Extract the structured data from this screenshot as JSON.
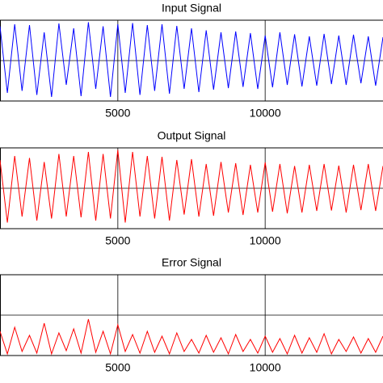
{
  "chart_data": [
    {
      "type": "line",
      "title": "Input Signal",
      "color": "#0000ff",
      "grid": true,
      "xlim": [
        1000,
        14000
      ],
      "xticks": [
        5000,
        10000
      ],
      "ylim": [
        -1,
        1
      ],
      "yticks": [
        0
      ],
      "x": [
        1000,
        1250,
        1500,
        1750,
        2000,
        2250,
        2500,
        2750,
        3000,
        3250,
        3500,
        3750,
        4000,
        4250,
        4500,
        4750,
        5000,
        5250,
        5500,
        5750,
        6000,
        6250,
        6500,
        6750,
        7000,
        7250,
        7500,
        7750,
        8000,
        8250,
        8500,
        8750,
        9000,
        9250,
        9500,
        9750,
        10000,
        10250,
        10500,
        10750,
        11000,
        11250,
        11500,
        11750,
        12000,
        12250,
        12500,
        12750,
        13000,
        13250,
        13500,
        13750,
        14000
      ],
      "values": [
        0.85,
        -0.8,
        0.9,
        -0.75,
        0.88,
        -0.85,
        0.7,
        -0.9,
        0.92,
        -0.6,
        0.8,
        -0.88,
        0.95,
        -0.7,
        0.85,
        -0.9,
        0.9,
        -0.8,
        0.93,
        -0.85,
        0.88,
        -0.75,
        0.9,
        -0.82,
        0.86,
        -0.7,
        0.8,
        -0.78,
        0.75,
        -0.72,
        0.7,
        -0.68,
        0.72,
        -0.65,
        0.68,
        -0.7,
        0.62,
        -0.66,
        0.7,
        -0.6,
        0.65,
        -0.64,
        0.6,
        -0.62,
        0.66,
        -0.58,
        0.62,
        -0.6,
        0.64,
        -0.56,
        0.6,
        -0.62,
        0.58
      ]
    },
    {
      "type": "line",
      "title": "Output Signal",
      "color": "#ff0000",
      "grid": true,
      "xlim": [
        1000,
        14000
      ],
      "xticks": [
        5000,
        10000
      ],
      "ylim": [
        -1,
        1
      ],
      "yticks": [
        0
      ],
      "x": [
        1000,
        1250,
        1500,
        1750,
        2000,
        2250,
        2500,
        2750,
        3000,
        3250,
        3500,
        3750,
        4000,
        4250,
        4500,
        4750,
        5000,
        5250,
        5500,
        5750,
        6000,
        6250,
        6500,
        6750,
        7000,
        7250,
        7500,
        7750,
        8000,
        8250,
        8500,
        8750,
        9000,
        9250,
        9500,
        9750,
        10000,
        10250,
        10500,
        10750,
        11000,
        11250,
        11500,
        11750,
        12000,
        12250,
        12500,
        12750,
        13000,
        13250,
        13500,
        13750,
        14000
      ],
      "values": [
        0.7,
        -0.85,
        0.8,
        -0.7,
        0.75,
        -0.8,
        0.65,
        -0.75,
        0.85,
        -0.7,
        0.8,
        -0.72,
        0.9,
        -0.8,
        0.85,
        -0.75,
        0.95,
        -0.85,
        0.9,
        -0.7,
        0.8,
        -0.75,
        0.78,
        -0.8,
        0.7,
        -0.65,
        0.72,
        -0.7,
        0.6,
        -0.68,
        0.65,
        -0.6,
        0.62,
        -0.66,
        0.58,
        -0.6,
        0.64,
        -0.58,
        0.6,
        -0.62,
        0.55,
        -0.6,
        0.58,
        -0.56,
        0.6,
        -0.55,
        0.56,
        -0.6,
        0.58,
        -0.54,
        0.6,
        -0.56,
        0.55
      ]
    },
    {
      "type": "line",
      "title": "Error Signal",
      "color": "#ff0000",
      "grid": true,
      "xlim": [
        1000,
        14000
      ],
      "xticks": [
        5000,
        10000
      ],
      "ylim": [
        0,
        1
      ],
      "yticks": [
        0.5
      ],
      "x": [
        1000,
        1250,
        1500,
        1750,
        2000,
        2250,
        2500,
        2750,
        3000,
        3250,
        3500,
        3750,
        4000,
        4250,
        4500,
        4750,
        5000,
        5250,
        5500,
        5750,
        6000,
        6250,
        6500,
        6750,
        7000,
        7250,
        7500,
        7750,
        8000,
        8250,
        8500,
        8750,
        9000,
        9250,
        9500,
        9750,
        10000,
        10250,
        10500,
        10750,
        11000,
        11250,
        11500,
        11750,
        12000,
        12250,
        12500,
        12750,
        13000,
        13250,
        13500,
        13750,
        14000
      ],
      "values": [
        0.3,
        0.02,
        0.35,
        0.05,
        0.25,
        0.03,
        0.4,
        0.02,
        0.28,
        0.06,
        0.33,
        0.03,
        0.45,
        0.04,
        0.3,
        0.02,
        0.38,
        0.05,
        0.26,
        0.03,
        0.3,
        0.04,
        0.24,
        0.02,
        0.28,
        0.05,
        0.2,
        0.03,
        0.25,
        0.04,
        0.22,
        0.02,
        0.26,
        0.05,
        0.2,
        0.03,
        0.24,
        0.04,
        0.21,
        0.02,
        0.25,
        0.03,
        0.22,
        0.04,
        0.27,
        0.02,
        0.2,
        0.05,
        0.23,
        0.03,
        0.21,
        0.04,
        0.24
      ]
    }
  ]
}
